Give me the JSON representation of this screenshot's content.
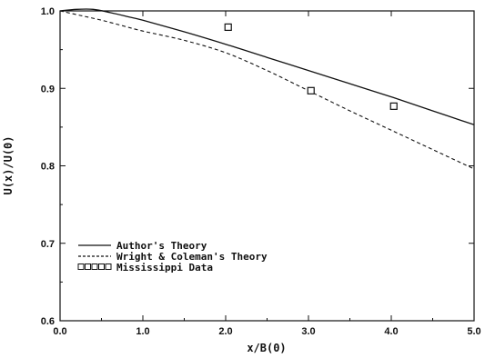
{
  "chart_data": {
    "type": "line",
    "xlabel": "x/B(0)",
    "ylabel": "U(x)/U(0)",
    "xlim": [
      0,
      5
    ],
    "ylim": [
      0.6,
      1.0
    ],
    "xticks": [
      0,
      1,
      2,
      3,
      4,
      5
    ],
    "xtick_labels": [
      "0.0",
      "1.0",
      "2.0",
      "3.0",
      "4.0",
      "5.0"
    ],
    "yticks": [
      0.6,
      0.7,
      0.8,
      0.9,
      1.0
    ],
    "ytick_labels": [
      "0.6",
      "0.7",
      "0.8",
      "0.9",
      "1.0"
    ],
    "grid": false,
    "legend_position": "lower-left",
    "series": [
      {
        "name": "Author's Theory",
        "style": "solid",
        "x": [
          0,
          0.2,
          0.4,
          0.6,
          0.8,
          1.0,
          1.5,
          2.0,
          2.5,
          3.0,
          3.5,
          4.0,
          4.5,
          5.0
        ],
        "y": [
          1.0,
          1.002,
          1.002,
          0.998,
          0.993,
          0.988,
          0.973,
          0.957,
          0.94,
          0.923,
          0.906,
          0.889,
          0.871,
          0.853
        ]
      },
      {
        "name": "Wright & Coleman's Theory",
        "style": "dashed",
        "x": [
          0,
          0.25,
          0.5,
          0.75,
          1.0,
          1.5,
          2.0,
          2.5,
          3.0,
          3.5,
          4.0,
          4.5,
          5.0
        ],
        "y": [
          1.0,
          0.994,
          0.988,
          0.981,
          0.974,
          0.962,
          0.946,
          0.923,
          0.897,
          0.871,
          0.846,
          0.821,
          0.796
        ]
      },
      {
        "name": "Mississippi Data",
        "style": "markers",
        "marker": "square",
        "x": [
          2.03,
          3.03,
          4.03
        ],
        "y": [
          0.979,
          0.897,
          0.877
        ]
      }
    ]
  }
}
